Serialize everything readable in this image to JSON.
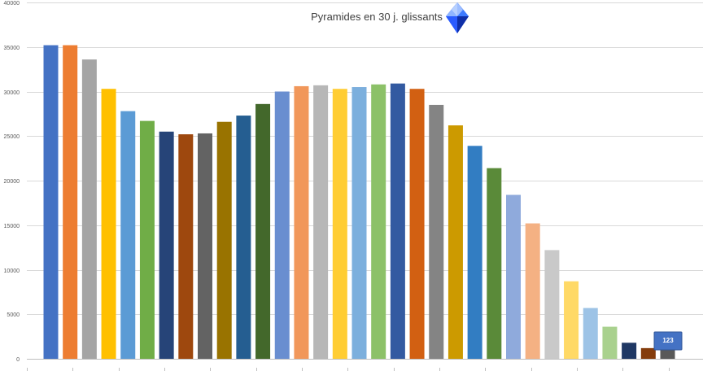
{
  "chart_data": {
    "type": "bar",
    "title": "Pyramides en 30 j. glissants",
    "xlabel": "",
    "ylabel": "",
    "ylim": [
      0,
      40000
    ],
    "yticks": [
      0,
      5000,
      10000,
      15000,
      20000,
      25000,
      30000,
      35000,
      40000
    ],
    "yticks_labels": [
      "0",
      "5000",
      "10000",
      "15000",
      "20000",
      "25000",
      "30000",
      "35000",
      "40000"
    ],
    "grid": true,
    "legend": "none",
    "values": [
      35200,
      35200,
      33600,
      30300,
      27800,
      26700,
      25500,
      25200,
      25300,
      26600,
      27300,
      28600,
      30000,
      30600,
      30700,
      30300,
      30500,
      30800,
      30900,
      30300,
      28500,
      26200,
      23900,
      21400,
      18400,
      15200,
      12200,
      8700,
      5700,
      3600,
      1800,
      1200,
      1100
    ],
    "colors": [
      "#4472C4",
      "#ED7D31",
      "#A5A5A5",
      "#FFC000",
      "#5B9BD5",
      "#70AD47",
      "#264478",
      "#9E480E",
      "#636363",
      "#997300",
      "#255E91",
      "#43682B",
      "#698ED0",
      "#F1975A",
      "#B7B7B7",
      "#FFCD33",
      "#7CAFDD",
      "#8CC168",
      "#335AA1",
      "#D26012",
      "#848484",
      "#CC9A00",
      "#327DC2",
      "#5A8A39",
      "#8FAADC",
      "#F4B183",
      "#C9C9C9",
      "#FFD966",
      "#9DC3E6",
      "#A9D18E",
      "#1F3864",
      "#843C0C",
      "#595959"
    ],
    "annotation": {
      "label": "123",
      "bar_index": 32,
      "color": "#4472C4"
    }
  },
  "decor": {
    "title_icon": "blue-diamond-icon"
  }
}
